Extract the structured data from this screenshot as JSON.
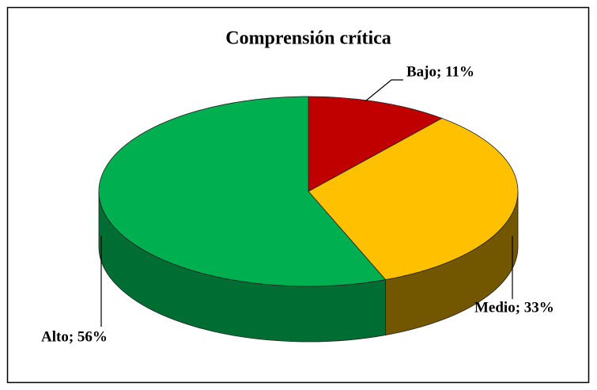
{
  "chart_data": {
    "type": "pie3d",
    "title": "Comprensión crítica",
    "values": [
      11,
      33,
      56
    ],
    "value_labels": [
      "Bajo; 11%",
      "Medio; 33%",
      "Alto; 56%"
    ],
    "colors": [
      "#c00000",
      "#ffc000",
      "#00b050"
    ]
  }
}
